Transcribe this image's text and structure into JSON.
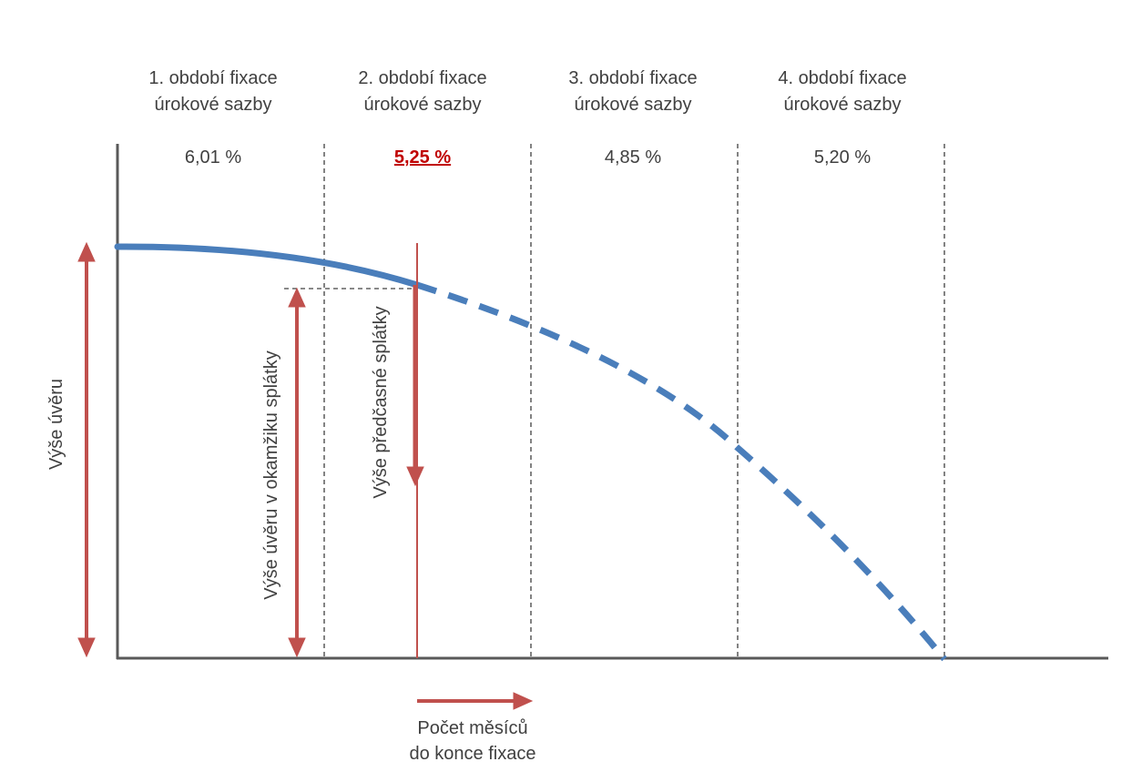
{
  "periods": [
    {
      "line1": "1. období fixace",
      "line2": "úrokové sazby",
      "rate": "6,01 %",
      "highlight": false
    },
    {
      "line1": "2. období fixace",
      "line2": "úrokové sazby",
      "rate": "5,25 %",
      "highlight": true
    },
    {
      "line1": "3. období fixace",
      "line2": "úrokové sazby",
      "rate": "4,85 %",
      "highlight": false
    },
    {
      "line1": "4. období fixace",
      "line2": "úrokové sazby",
      "rate": "5,20 %",
      "highlight": false
    }
  ],
  "labels": {
    "loan_amount": "Výše úvěru",
    "loan_at_repayment": "Výše úvěru v okamžiku splátky",
    "early_repayment": "Výše předčasné splátky",
    "months_line1": "Počet měsíců",
    "months_line2": "do konce fixace"
  },
  "colors": {
    "curve": "#4a7ebb",
    "arrow": "#c0504d",
    "highlight_rate": "#c00000",
    "text": "#404040"
  }
}
